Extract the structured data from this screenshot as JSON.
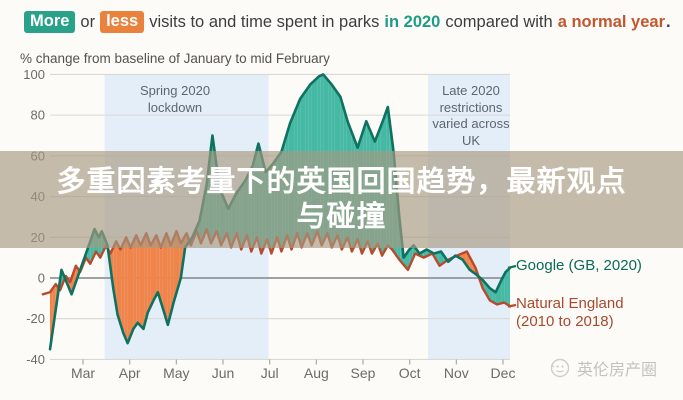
{
  "header": {
    "badge_more": "More",
    "or": "or",
    "badge_less": "less",
    "text_mid": "visits to and time spent in parks",
    "text_2020": "in 2020",
    "text_compared": "compared with",
    "text_normal": "a normal year",
    "period": ".",
    "subtitle": "% change from baseline of January to mid February"
  },
  "overlay": {
    "line1": "多重因素考量下的英国回国趋势，最新观点",
    "line2": "与碰撞"
  },
  "annotations": {
    "spring": "Spring 2020\nlockdown",
    "late": "Late 2020\nrestrictions\nvaried across\nUK"
  },
  "legend": {
    "google": "Google (GB, 2020)",
    "natural_england": "Natural England\n(2010 to 2018)"
  },
  "watermark": {
    "text": "英伦房产圈"
  },
  "colors": {
    "badge_more": "#2aa189",
    "badge_less": "#e8823c",
    "teal_line": "#0f7260",
    "teal_fill": "#45b9a3",
    "orange_line": "#b94a2c",
    "orange_fill": "#f0854b",
    "band": "#e4eef8",
    "grid": "#d9d9d4",
    "zero_line": "#8f9499",
    "axis_text": "#6e6b66",
    "banner": "rgba(169,153,129,0.66)",
    "google_label": "#0c6a57",
    "ne_label": "#a8492e"
  },
  "chart_data": {
    "type": "line",
    "title": "More or less visits to and time spent in parks in 2020 compared with a normal year.",
    "subtitle": "% change from baseline of January to mid February",
    "grid": true,
    "fill_between": true,
    "legend_position": "right-of-lines",
    "x_axis": {
      "unit": "days from Feb 15 2020",
      "range_days": [
        0,
        320
      ],
      "tick_labels": [
        "Mar",
        "Apr",
        "May",
        "Jun",
        "Jul",
        "Aug",
        "Sep",
        "Oct",
        "Nov",
        "Dec"
      ]
    },
    "y_axis": {
      "min": -40,
      "max": 100,
      "step": 20
    },
    "bands": [
      {
        "label": "Spring 2020 lockdown",
        "day_from": 38,
        "day_to": 152
      },
      {
        "label": "Late 2020 restrictions varied across UK",
        "day_from": 263,
        "day_to": 320
      }
    ],
    "series": [
      {
        "name": "Google (GB, 2020)",
        "line_color": "#0f7260",
        "fill_color": "#45b9a3",
        "x_days": [
          0,
          8,
          15,
          24,
          28,
          31,
          34,
          36,
          40,
          44,
          47,
          51,
          54,
          58,
          61,
          65,
          68,
          72,
          75,
          79,
          82,
          86,
          91,
          94,
          99,
          104,
          109,
          113,
          118,
          124,
          130,
          136,
          141,
          145,
          150,
          155,
          161,
          167,
          174,
          181,
          187,
          190,
          196,
          202,
          207,
          214,
          220,
          226,
          232,
          235,
          239,
          243,
          246,
          250,
          253,
          257,
          262,
          267,
          272,
          277,
          282,
          287,
          292,
          296,
          301,
          306,
          310,
          314,
          317,
          320
        ],
        "values": [
          -35,
          4,
          -8,
          10,
          18,
          24,
          20,
          23,
          16,
          -5,
          -18,
          -27,
          -32,
          -25,
          -22,
          -25,
          -17,
          -11,
          -7,
          -16,
          -23,
          -12,
          0,
          15,
          20,
          28,
          46,
          70,
          44,
          34,
          42,
          48,
          55,
          66,
          52,
          56,
          62,
          76,
          88,
          95,
          99,
          100,
          95,
          89,
          77,
          64,
          77,
          67,
          78,
          84,
          62,
          30,
          10,
          14,
          16,
          12,
          14,
          12,
          13,
          8,
          11,
          9,
          4,
          2,
          -1,
          -5,
          -7,
          -1,
          3,
          5
        ]
      },
      {
        "name": "Natural England (2010 to 2018)",
        "line_color": "#b94a2c",
        "fill_color": "#f0854b",
        "x_days": [
          -5,
          0,
          4,
          7,
          11,
          14,
          18,
          21,
          25,
          28,
          32,
          35,
          39,
          42,
          46,
          49,
          53,
          56,
          60,
          63,
          67,
          70,
          74,
          77,
          81,
          84,
          88,
          91,
          95,
          98,
          102,
          105,
          109,
          112,
          116,
          119,
          123,
          126,
          130,
          133,
          137,
          140,
          144,
          147,
          151,
          154,
          158,
          161,
          165,
          168,
          172,
          175,
          179,
          182,
          186,
          189,
          193,
          196,
          200,
          203,
          207,
          210,
          214,
          217,
          221,
          224,
          228,
          231,
          235,
          238,
          243,
          249,
          254,
          260,
          266,
          271,
          277,
          283,
          290,
          296,
          301,
          306,
          311,
          316,
          320
        ],
        "values": [
          -8,
          -7,
          -3,
          -6,
          1,
          -2,
          6,
          3,
          10,
          7,
          13,
          10,
          16,
          12,
          18,
          14,
          20,
          15,
          21,
          16,
          22,
          16,
          21,
          15,
          22,
          16,
          23,
          17,
          22,
          16,
          23,
          17,
          24,
          17,
          23,
          16,
          22,
          15,
          22,
          14,
          21,
          13,
          20,
          12,
          19,
          12,
          20,
          13,
          21,
          14,
          22,
          15,
          22,
          16,
          23,
          16,
          22,
          15,
          21,
          14,
          20,
          13,
          19,
          12,
          18,
          12,
          17,
          11,
          16,
          14,
          9,
          4,
          12,
          10,
          12,
          6,
          9,
          11,
          13,
          5,
          -5,
          -11,
          -13,
          -12,
          -14
        ]
      }
    ]
  }
}
